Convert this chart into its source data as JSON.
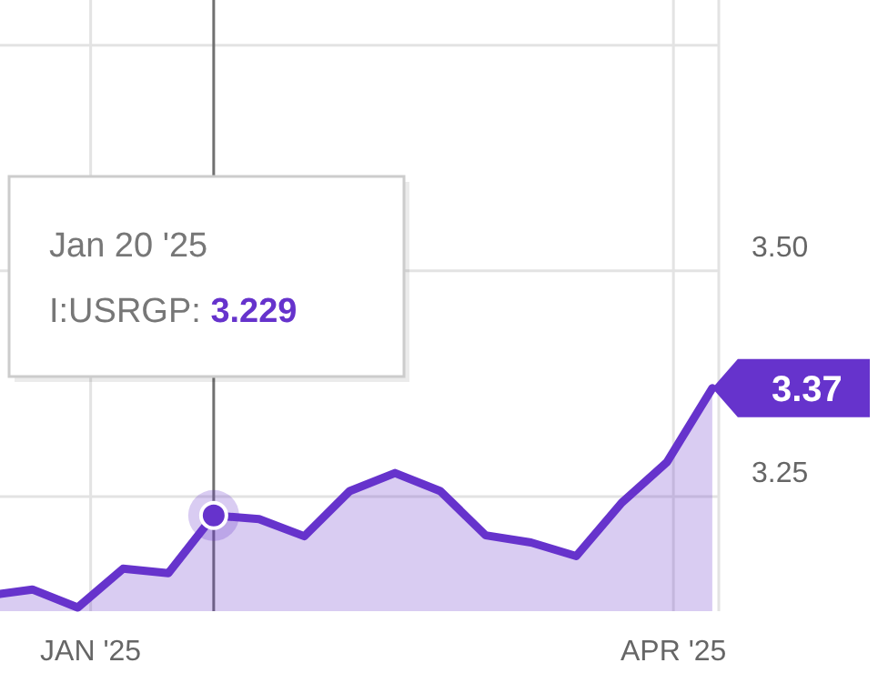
{
  "chart_data": {
    "type": "area",
    "x": [
      "2024-12-18",
      "2024-12-23",
      "2024-12-30",
      "2025-01-06",
      "2025-01-13",
      "2025-01-20",
      "2025-01-27",
      "2025-02-03",
      "2025-02-10",
      "2025-02-17",
      "2025-02-24",
      "2025-03-03",
      "2025-03-10",
      "2025-03-17",
      "2025-03-24",
      "2025-03-31",
      "2025-04-07"
    ],
    "series": [
      {
        "color": "#6633cc",
        "values": [
          3.142,
          3.147,
          3.127,
          3.17,
          3.165,
          3.229,
          3.225,
          3.206,
          3.256,
          3.276,
          3.256,
          3.207,
          3.199,
          3.184,
          3.243,
          3.288,
          3.37
        ],
        "value_labels": [
          null,
          null,
          null,
          null,
          null,
          null,
          null,
          null,
          null,
          null,
          null,
          null,
          null,
          null,
          null,
          null,
          "3.37"
        ]
      }
    ],
    "xlim": [
      "2024-12-18",
      "2025-04-08"
    ],
    "xticks": [
      {
        "value": "2025-01-01",
        "label": "JAN '25"
      },
      {
        "value": "2025-04-01",
        "label": "APR '25"
      }
    ],
    "ylim": [
      3.123,
      3.8
    ],
    "yticks": [
      3.25,
      {
        "value": 3.5,
        "label": "3.50"
      },
      {
        "value": 3.75,
        "label": null
      }
    ],
    "grid": true,
    "ref_lines": [
      {
        "axis": "x",
        "value": "2025-01-20",
        "color": "#707070"
      }
    ],
    "annotations": [
      "Jan 20 '25",
      "I:USRGP:",
      "3.229"
    ]
  }
}
